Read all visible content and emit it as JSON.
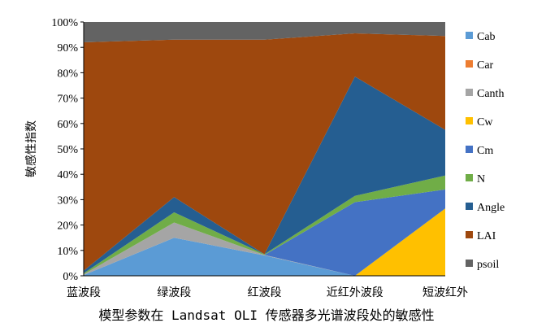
{
  "chart_data": {
    "type": "area",
    "stacked": true,
    "percent": true,
    "categories": [
      "蓝波段",
      "绿波段",
      "红波段",
      "近红外波段",
      "短波红外"
    ],
    "ylabel": "敏感性指数",
    "ylim": [
      0,
      100
    ],
    "yticks": [
      "0%",
      "10%",
      "20%",
      "30%",
      "40%",
      "50%",
      "60%",
      "70%",
      "80%",
      "90%",
      "100%"
    ],
    "grid": false,
    "legend_position": "right",
    "series": [
      {
        "name": "Cab",
        "color": "#5B9BD5",
        "values": [
          0.3,
          15,
          8,
          0,
          0
        ]
      },
      {
        "name": "Car",
        "color": "#ED7D31",
        "values": [
          0,
          0,
          0,
          0,
          0
        ]
      },
      {
        "name": "Canth",
        "color": "#A5A5A5",
        "values": [
          0.3,
          6,
          0.2,
          0,
          0
        ]
      },
      {
        "name": "Cw",
        "color": "#FFC000",
        "values": [
          0,
          0,
          0,
          0,
          26.5
        ]
      },
      {
        "name": "Cm",
        "color": "#4472C4",
        "values": [
          0,
          0,
          0,
          29,
          7.5
        ]
      },
      {
        "name": "N",
        "color": "#70AD47",
        "values": [
          0.4,
          4,
          0.3,
          2.5,
          5.5
        ]
      },
      {
        "name": "Angle",
        "color": "#255E91",
        "values": [
          1,
          6,
          0,
          47,
          18
        ]
      },
      {
        "name": "LAI",
        "color": "#9E480E",
        "values": [
          90,
          62,
          84.5,
          17,
          37
        ]
      },
      {
        "name": "psoil",
        "color": "#636363",
        "values": [
          8,
          7,
          7,
          4.5,
          5.5
        ]
      }
    ]
  },
  "caption": "模型参数在 Landsat OLI 传感器多光谱波段处的敏感性"
}
